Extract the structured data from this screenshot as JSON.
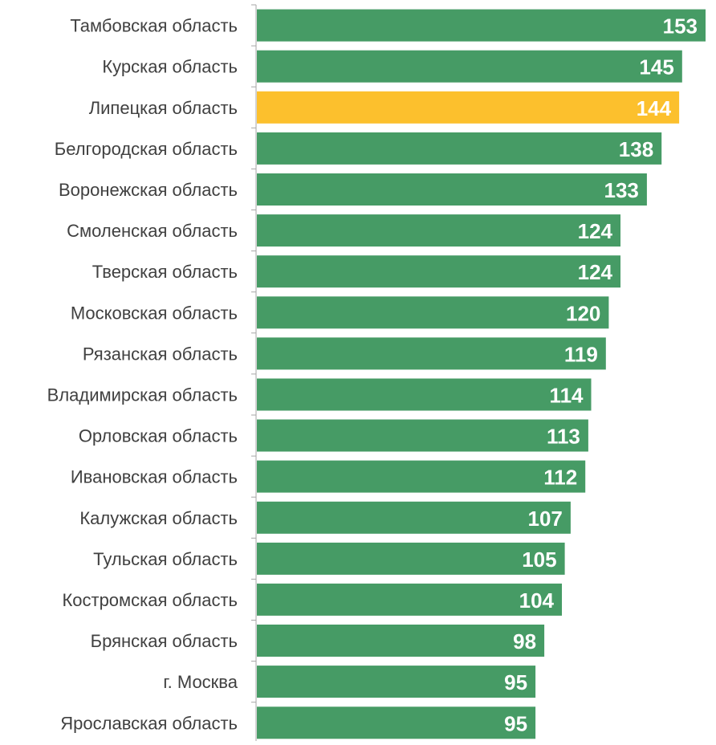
{
  "colors": {
    "bar": "#469b65",
    "highlight": "#fcc02d",
    "axis": "#a6a6a6",
    "label_text": "#404040",
    "value_text": "#ffffff"
  },
  "chart_data": {
    "type": "bar",
    "orientation": "horizontal",
    "title": "",
    "xlabel": "",
    "ylabel": "",
    "grid": false,
    "legend": "none",
    "xlim": [
      0,
      155
    ],
    "highlight_category": "Липецкая область",
    "categories": [
      "Тамбовская область",
      "Курская область",
      "Липецкая область",
      "Белгородская область",
      "Воронежская область",
      "Смоленская область",
      "Тверская область",
      "Московская область",
      "Рязанская область",
      "Владимирская область",
      "Орловская область",
      "Ивановская область",
      "Калужская область",
      "Тульская область",
      "Костромская область",
      "Брянская область",
      "г. Москва",
      "Ярославская область"
    ],
    "values": [
      153,
      145,
      144,
      138,
      133,
      124,
      124,
      120,
      119,
      114,
      113,
      112,
      107,
      105,
      104,
      98,
      95,
      95
    ]
  }
}
